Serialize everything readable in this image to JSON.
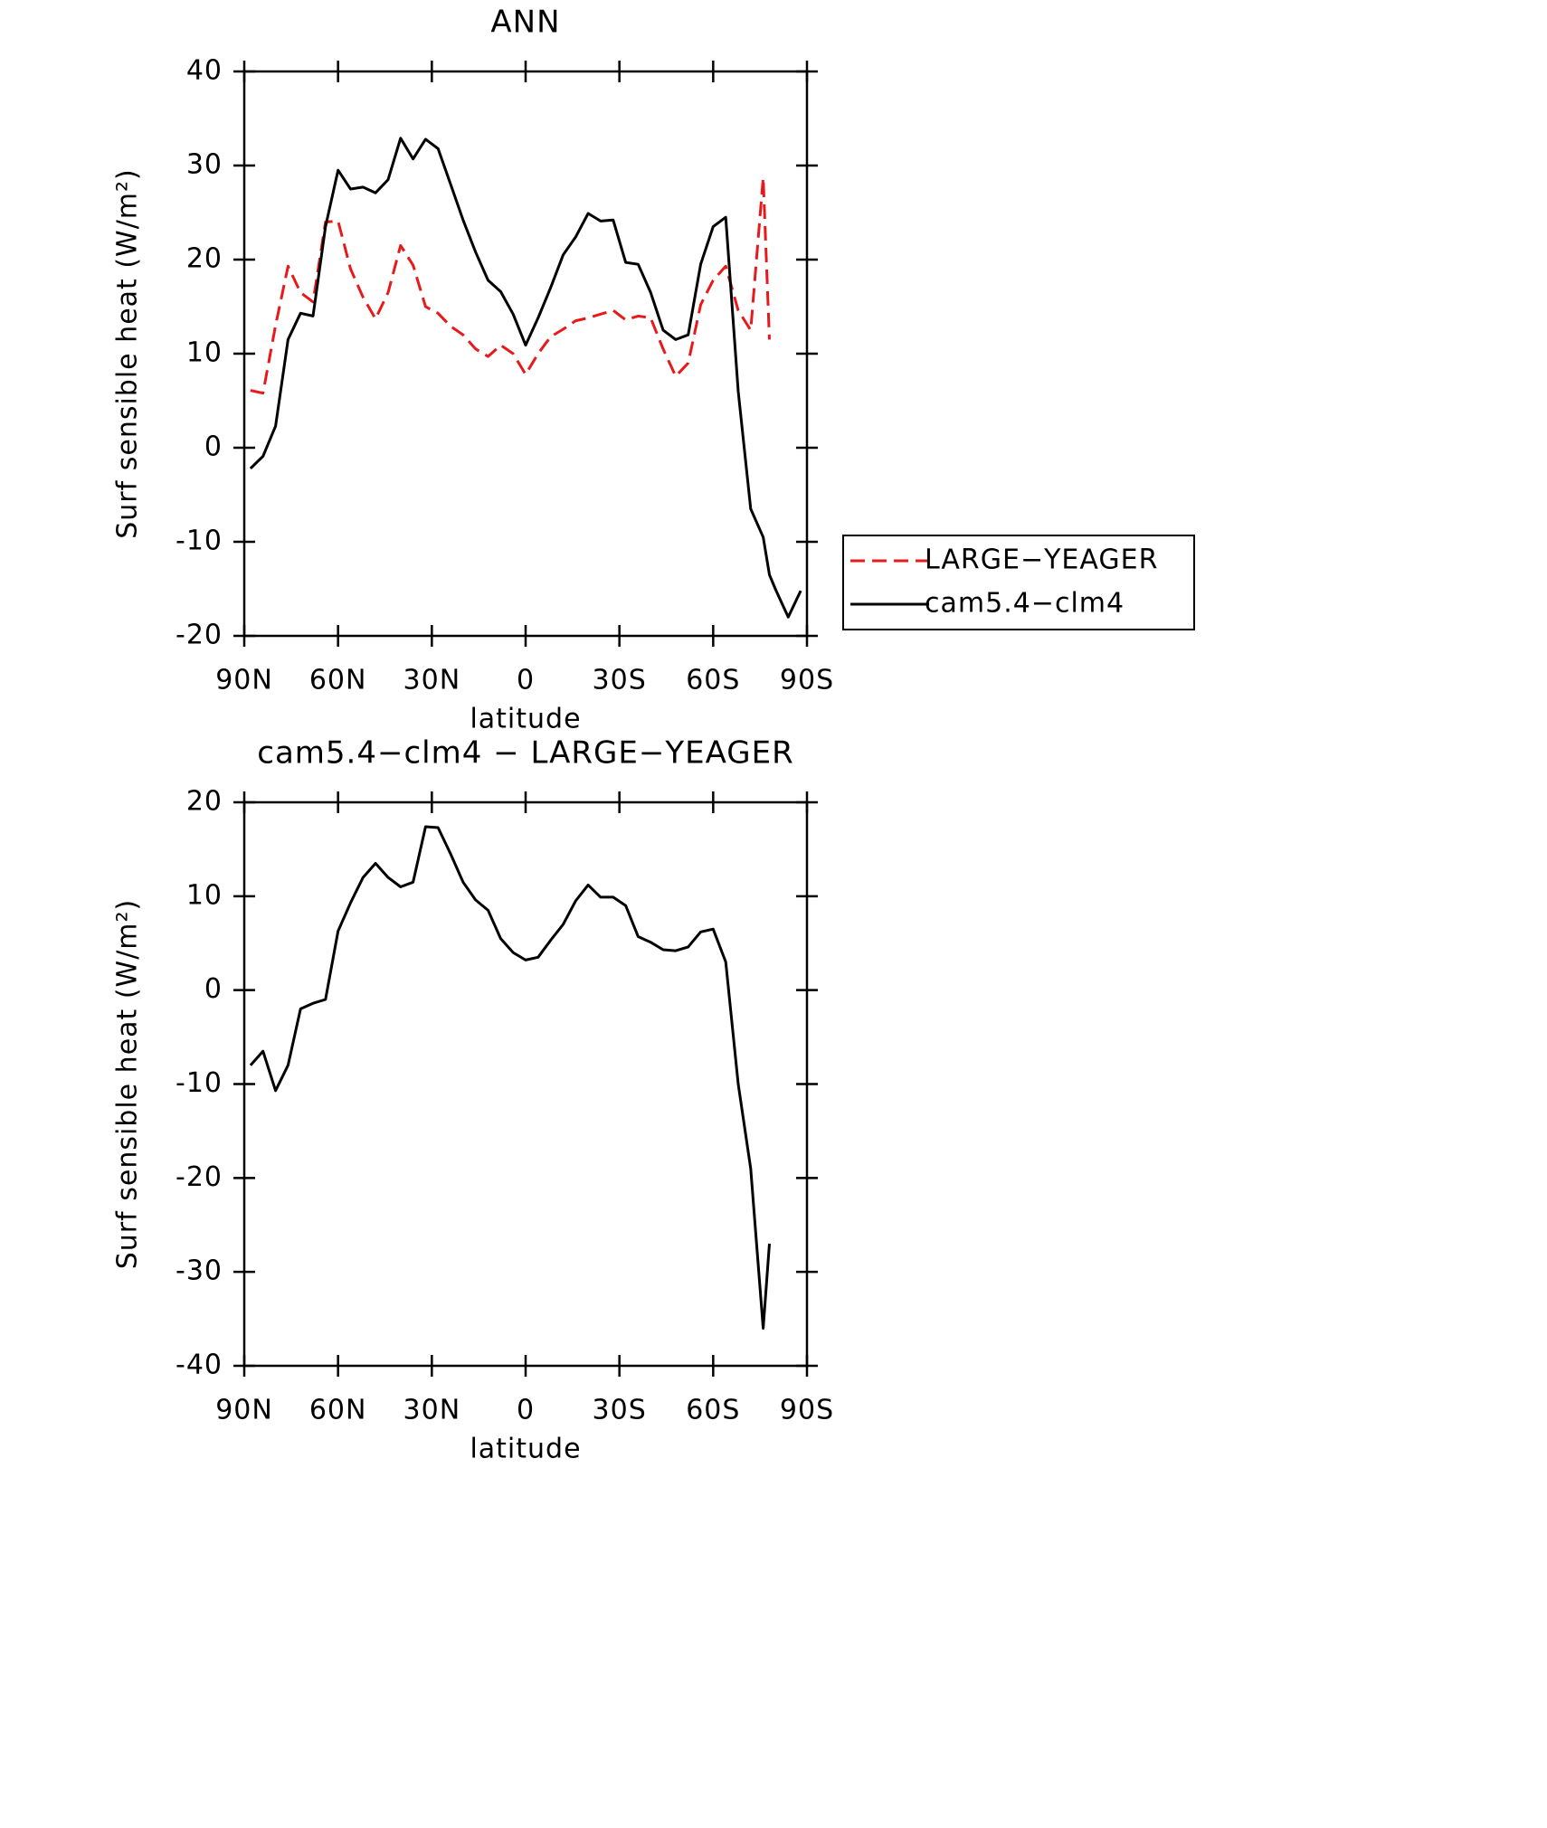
{
  "chart_data": [
    {
      "type": "line",
      "title": "ANN",
      "xlabel": "latitude",
      "ylabel": "Surf sensible heat (W/m²)",
      "x": [
        88,
        84,
        80,
        76,
        72,
        68,
        64,
        60,
        56,
        52,
        48,
        44,
        40,
        36,
        32,
        28,
        24,
        20,
        16,
        12,
        8,
        4,
        0,
        -4,
        -8,
        -12,
        -16,
        -20,
        -24,
        -28,
        -32,
        -36,
        -40,
        -44,
        -48,
        -52,
        -56,
        -60,
        -64,
        -68,
        -72,
        -76,
        -78,
        -80,
        -84,
        -88
      ],
      "xlim": [
        90,
        -90
      ],
      "xticks": [
        {
          "value": 90,
          "label": "90N"
        },
        {
          "value": 60,
          "label": "60N"
        },
        {
          "value": 30,
          "label": "30N"
        },
        0,
        {
          "value": -30,
          "label": "30S"
        },
        {
          "value": -60,
          "label": "60S"
        },
        {
          "value": -90,
          "label": "90S"
        }
      ],
      "ylim": [
        -20,
        40
      ],
      "yticks": [
        -20,
        -10,
        0,
        10,
        20,
        30,
        40
      ],
      "legend": "right",
      "series": [
        {
          "name": "LARGE−YEAGER",
          "color": "#e8191b",
          "linestyle": "dashed",
          "values": [
            6.1,
            5.8,
            13,
            19.3,
            16.5,
            15.5,
            24,
            24.1,
            19,
            16,
            13.7,
            16.5,
            21.5,
            19.4,
            15,
            14.3,
            12.9,
            12,
            10.5,
            9.7,
            10.9,
            10,
            7.8,
            10,
            11.8,
            12.6,
            13.5,
            13.8,
            14.2,
            14.6,
            13.6,
            14,
            13.8,
            10.5,
            7.6,
            9,
            15.2,
            17.8,
            19.3,
            14.6,
            12.5,
            28.7,
            11.5,
            null,
            null,
            null
          ]
        },
        {
          "name": "cam5.4−clm4",
          "color": "#000000",
          "linestyle": "solid",
          "values": [
            -2.2,
            -0.9,
            2.3,
            11.5,
            14.3,
            14,
            23.5,
            29.5,
            27.5,
            27.7,
            27.1,
            28.5,
            32.9,
            30.7,
            32.8,
            31.8,
            28,
            24.2,
            20.8,
            17.8,
            16.6,
            14.2,
            10.9,
            13.8,
            17,
            20.5,
            22.4,
            24.9,
            24.1,
            24.2,
            19.7,
            19.5,
            16.5,
            12.5,
            11.5,
            12,
            19.5,
            23.5,
            24.5,
            6,
            -6.5,
            -9.5,
            -13.5,
            -15.1,
            -18,
            -15.2
          ]
        }
      ]
    },
    {
      "type": "line",
      "title": "cam5.4−clm4 − LARGE−YEAGER",
      "xlabel": "latitude",
      "ylabel": "Surf sensible heat (W/m²)",
      "x": [
        88,
        84,
        80,
        76,
        72,
        68,
        64,
        60,
        56,
        52,
        48,
        44,
        40,
        36,
        32,
        28,
        24,
        20,
        16,
        12,
        8,
        4,
        0,
        -4,
        -8,
        -12,
        -16,
        -20,
        -24,
        -28,
        -32,
        -36,
        -40,
        -44,
        -48,
        -52,
        -56,
        -60,
        -64,
        -68,
        -72,
        -76,
        -78,
        -80,
        -84,
        -88
      ],
      "xlim": [
        90,
        -90
      ],
      "xticks": [
        {
          "value": 90,
          "label": "90N"
        },
        {
          "value": 60,
          "label": "60N"
        },
        {
          "value": 30,
          "label": "30N"
        },
        0,
        {
          "value": -30,
          "label": "30S"
        },
        {
          "value": -60,
          "label": "60S"
        },
        {
          "value": -90,
          "label": "90S"
        }
      ],
      "ylim": [
        -40,
        20
      ],
      "yticks": [
        -40,
        -30,
        -20,
        -10,
        0,
        10,
        20
      ],
      "color": "#000000",
      "values": [
        -8,
        -6.5,
        -10.7,
        -8,
        -2,
        -1.4,
        -1,
        6.3,
        9.3,
        12,
        13.5,
        12,
        11,
        11.5,
        17.4,
        17.3,
        14.5,
        11.5,
        9.6,
        8.5,
        5.5,
        4,
        3.2,
        3.5,
        5.3,
        7,
        9.5,
        11.2,
        9.9,
        9.9,
        9,
        5.7,
        5.1,
        4.3,
        4.2,
        4.6,
        6.2,
        6.5,
        3,
        -10,
        -19,
        -36,
        -27,
        null,
        null,
        null
      ]
    }
  ]
}
